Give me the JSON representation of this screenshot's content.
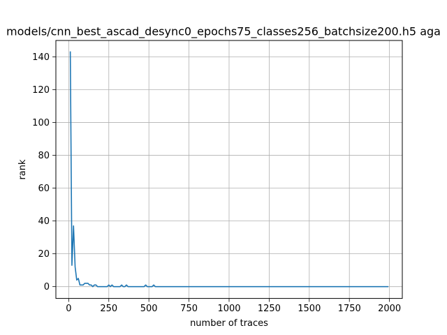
{
  "chart_data": {
    "type": "line",
    "title": "models/cnn_best_ascad_desync0_epochs75_classes256_batchsize200.h5 aga",
    "xlabel": "number of traces",
    "ylabel": "rank",
    "xlim": [
      -80,
      2080
    ],
    "ylim": [
      -7.2,
      150
    ],
    "xticks": [
      0,
      250,
      500,
      750,
      1000,
      1250,
      1500,
      1750,
      2000
    ],
    "xtick_labels": [
      "0",
      "250",
      "500",
      "750",
      "1000",
      "1250",
      "1500",
      "1750",
      "2000"
    ],
    "yticks": [
      0,
      20,
      40,
      60,
      80,
      100,
      120,
      140
    ],
    "ytick_labels": [
      "0",
      "20",
      "40",
      "60",
      "80",
      "100",
      "120",
      "140"
    ],
    "grid": true,
    "line_color": "#1f77b4",
    "series": [
      {
        "x": [
          10,
          20,
          30,
          40,
          50,
          60,
          70,
          80,
          90,
          100,
          110,
          120,
          130,
          140,
          150,
          160,
          170,
          180,
          190,
          200,
          210,
          220,
          230,
          240,
          250,
          260,
          270,
          280,
          290,
          300,
          310,
          320,
          330,
          340,
          350,
          360,
          370,
          380,
          390,
          400,
          450,
          470,
          480,
          490,
          500,
          520,
          530,
          540,
          550,
          600,
          700,
          800,
          900,
          1000,
          1100,
          1200,
          1300,
          1400,
          1500,
          1600,
          1700,
          1800,
          1900,
          1990
        ],
        "values": [
          143,
          13,
          37,
          12,
          4,
          5,
          1,
          1,
          1,
          2,
          2,
          2,
          1,
          1,
          0,
          1,
          1,
          0,
          0,
          0,
          0,
          0,
          0,
          0,
          1,
          0,
          1,
          0,
          0,
          0,
          0,
          0,
          1,
          0,
          0,
          1,
          0,
          0,
          0,
          0,
          0,
          0,
          1,
          0,
          0,
          0,
          1,
          0,
          0,
          0,
          0,
          0,
          0,
          0,
          0,
          0,
          0,
          0,
          0,
          0,
          0,
          0,
          0,
          0
        ]
      }
    ]
  }
}
